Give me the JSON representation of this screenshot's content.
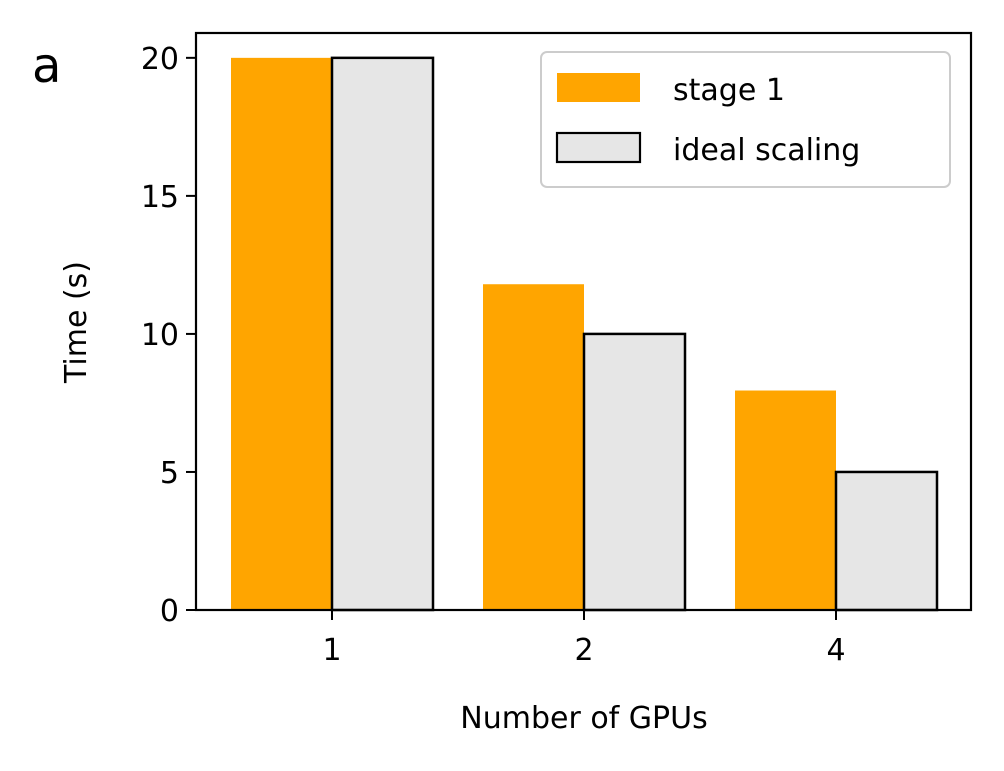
{
  "panel_label": "a",
  "colors": {
    "stage1": "#ffa500",
    "ideal": "#e6e6e6",
    "edge": "#000000"
  },
  "chart_data": {
    "type": "bar",
    "categories": [
      "1",
      "2",
      "4"
    ],
    "series": [
      {
        "name": "stage 1",
        "values": [
          20.0,
          11.8,
          7.95
        ]
      },
      {
        "name": "ideal scaling",
        "values": [
          20.0,
          10.0,
          5.0
        ]
      }
    ],
    "xlabel": "Number of GPUs",
    "ylabel": "Time (s)",
    "ylim": [
      0,
      20.9
    ],
    "yticks": [
      0,
      5,
      10,
      15,
      20
    ],
    "grid": false,
    "legend": "top-right"
  }
}
